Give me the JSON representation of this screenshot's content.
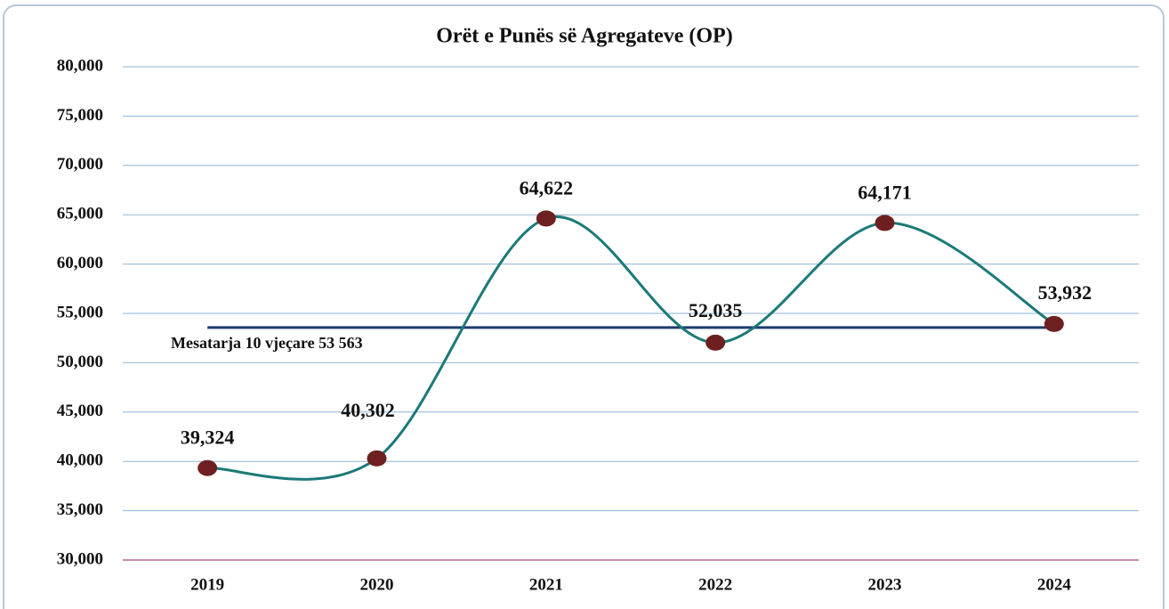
{
  "chart_data": {
    "type": "line",
    "title": "Orët e Punës së Agregateve (OP)",
    "categories": [
      "2019",
      "2020",
      "2021",
      "2022",
      "2023",
      "2024"
    ],
    "series": [
      {
        "name": "OP",
        "color": "#1b7a78",
        "marker_color": "#6e2020",
        "values": [
          39324,
          40302,
          64622,
          52035,
          64171,
          53932
        ],
        "value_labels": [
          "39,324",
          "40,302",
          "64,622",
          "52,035",
          "64,171",
          "53,932"
        ]
      }
    ],
    "average": {
      "label": "Mesatarja 10 vjeçare 53 563",
      "value": 53563,
      "color": "#1f3b6e"
    },
    "ylim": [
      30000,
      80000
    ],
    "yticks": [
      {
        "value": 30000,
        "label": "30,000"
      },
      {
        "value": 35000,
        "label": "35,000"
      },
      {
        "value": 40000,
        "label": "40,000"
      },
      {
        "value": 45000,
        "label": "45,000"
      },
      {
        "value": 50000,
        "label": "50,000"
      },
      {
        "value": 55000,
        "label": "55,000"
      },
      {
        "value": 60000,
        "label": "60,000"
      },
      {
        "value": 65000,
        "label": "65,000"
      },
      {
        "value": 70000,
        "label": "70,000"
      },
      {
        "value": 75000,
        "label": "75,000"
      },
      {
        "value": 80000,
        "label": "80,000"
      }
    ],
    "grid": true,
    "smooth": true
  }
}
